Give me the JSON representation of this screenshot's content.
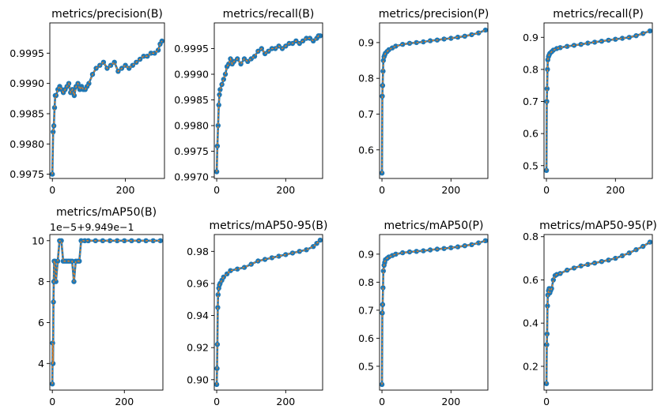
{
  "chart_data": [
    {
      "type": "line",
      "title": "metrics/precision(B)",
      "xlabel": "",
      "ylabel": "",
      "xlim": [
        -7,
        307
      ],
      "ylim": [
        0.99743,
        1.0
      ],
      "xticks": [
        0,
        200
      ],
      "yticks": [
        0.9975,
        0.998,
        0.9985,
        0.999,
        0.9995
      ],
      "ytick_labels": [
        "0.9975",
        "0.9980",
        "0.9985",
        "0.9990",
        "0.9995"
      ],
      "series": [
        {
          "x": [
            0,
            2,
            4,
            6,
            8,
            10,
            15,
            20,
            25,
            30,
            35,
            40,
            45,
            50,
            55,
            60,
            65,
            70,
            75,
            80,
            85,
            90,
            95,
            100,
            110,
            120,
            130,
            140,
            150,
            160,
            170,
            180,
            190,
            200,
            210,
            220,
            230,
            240,
            250,
            260,
            270,
            280,
            290,
            295,
            300
          ],
          "values": [
            0.9975,
            0.9982,
            0.9983,
            0.9986,
            0.9988,
            0.9988,
            0.9989,
            0.99895,
            0.9989,
            0.99885,
            0.9989,
            0.99895,
            0.999,
            0.99885,
            0.9989,
            0.9988,
            0.99895,
            0.999,
            0.9989,
            0.99895,
            0.9989,
            0.9989,
            0.99895,
            0.999,
            0.99915,
            0.99925,
            0.9993,
            0.99935,
            0.99925,
            0.9993,
            0.99935,
            0.9992,
            0.99925,
            0.9993,
            0.99925,
            0.9993,
            0.99935,
            0.9994,
            0.99945,
            0.99945,
            0.9995,
            0.9995,
            0.99955,
            0.99965,
            0.9997
          ]
        }
      ]
    },
    {
      "type": "line",
      "title": "metrics/recall(B)",
      "xlabel": "",
      "ylabel": "",
      "xlim": [
        -7,
        307
      ],
      "ylim": [
        0.99697,
        1.0
      ],
      "xticks": [
        0,
        200
      ],
      "yticks": [
        0.997,
        0.9975,
        0.998,
        0.9985,
        0.999,
        0.9995
      ],
      "ytick_labels": [
        "0.9970",
        "0.9975",
        "0.9980",
        "0.9985",
        "0.9990",
        "0.9995"
      ],
      "series": [
        {
          "x": [
            0,
            2,
            4,
            6,
            8,
            10,
            15,
            20,
            25,
            30,
            35,
            40,
            45,
            50,
            60,
            70,
            80,
            90,
            100,
            110,
            120,
            130,
            140,
            150,
            160,
            170,
            180,
            190,
            200,
            210,
            220,
            230,
            240,
            250,
            260,
            270,
            280,
            290,
            295,
            300
          ],
          "values": [
            0.9971,
            0.9976,
            0.998,
            0.9984,
            0.9986,
            0.9987,
            0.9988,
            0.9989,
            0.999,
            0.99915,
            0.9992,
            0.9993,
            0.9992,
            0.99925,
            0.9993,
            0.9992,
            0.9993,
            0.99925,
            0.9993,
            0.99935,
            0.99945,
            0.9995,
            0.9994,
            0.99945,
            0.9995,
            0.9995,
            0.99955,
            0.9995,
            0.99955,
            0.9996,
            0.9996,
            0.99965,
            0.9996,
            0.99965,
            0.9997,
            0.9997,
            0.99965,
            0.9997,
            0.99975,
            0.99975
          ]
        }
      ]
    },
    {
      "type": "line",
      "title": "metrics/precision(P)",
      "xlabel": "",
      "ylabel": "",
      "xlim": [
        -7,
        307
      ],
      "ylim": [
        0.52,
        0.955
      ],
      "xticks": [
        0,
        200
      ],
      "yticks": [
        0.6,
        0.7,
        0.8,
        0.9
      ],
      "ytick_labels": [
        "0.6",
        "0.7",
        "0.8",
        "0.9"
      ],
      "series": [
        {
          "x": [
            0,
            1,
            2,
            3,
            4,
            6,
            8,
            10,
            15,
            20,
            30,
            40,
            60,
            80,
            100,
            120,
            140,
            160,
            180,
            200,
            220,
            240,
            260,
            280,
            300
          ],
          "values": [
            0.535,
            0.75,
            0.78,
            0.82,
            0.85,
            0.86,
            0.865,
            0.87,
            0.875,
            0.88,
            0.885,
            0.89,
            0.895,
            0.898,
            0.9,
            0.902,
            0.905,
            0.907,
            0.91,
            0.912,
            0.915,
            0.918,
            0.922,
            0.927,
            0.935
          ]
        }
      ]
    },
    {
      "type": "line",
      "title": "metrics/recall(P)",
      "xlabel": "",
      "ylabel": "",
      "xlim": [
        -7,
        307
      ],
      "ylim": [
        0.46,
        0.945
      ],
      "xticks": [
        0,
        200
      ],
      "yticks": [
        0.5,
        0.6,
        0.7,
        0.8,
        0.9
      ],
      "ytick_labels": [
        "0.5",
        "0.6",
        "0.7",
        "0.8",
        "0.9"
      ],
      "series": [
        {
          "x": [
            0,
            1,
            2,
            3,
            4,
            6,
            8,
            10,
            15,
            20,
            30,
            40,
            60,
            80,
            100,
            120,
            140,
            160,
            180,
            200,
            220,
            240,
            260,
            280,
            300
          ],
          "values": [
            0.485,
            0.7,
            0.74,
            0.8,
            0.83,
            0.84,
            0.845,
            0.85,
            0.855,
            0.86,
            0.865,
            0.868,
            0.872,
            0.875,
            0.878,
            0.882,
            0.885,
            0.888,
            0.891,
            0.894,
            0.897,
            0.9,
            0.905,
            0.912,
            0.92
          ]
        }
      ]
    },
    {
      "type": "line",
      "title": "metrics/mAP50(B)",
      "offset_text": "1e−5+9.949e−1",
      "xlabel": "",
      "ylabel": "",
      "xlim": [
        -7,
        307
      ],
      "ylim": [
        2.7,
        10.3
      ],
      "xticks": [
        0,
        200
      ],
      "yticks": [
        4,
        6,
        8,
        10
      ],
      "ytick_labels": [
        "4",
        "6",
        "8",
        "10"
      ],
      "series": [
        {
          "x": [
            0,
            1,
            2,
            3,
            4,
            5,
            7,
            10,
            15,
            20,
            25,
            30,
            35,
            40,
            45,
            50,
            55,
            60,
            65,
            70,
            75,
            80,
            90,
            100,
            120,
            140,
            160,
            180,
            200,
            220,
            240,
            260,
            280,
            300
          ],
          "values": [
            3,
            5,
            4,
            7,
            8,
            9,
            9,
            8,
            9,
            10,
            10,
            9,
            9,
            9,
            9,
            9,
            9,
            8,
            9,
            9,
            9,
            10,
            10,
            10,
            10,
            10,
            10,
            10,
            10,
            10,
            10,
            10,
            10,
            10
          ]
        }
      ]
    },
    {
      "type": "line",
      "title": "metrics/mAP50-95(B)",
      "xlabel": "",
      "ylabel": "",
      "xlim": [
        -7,
        307
      ],
      "ylim": [
        0.8935,
        0.9905
      ],
      "xticks": [
        0,
        200
      ],
      "yticks": [
        0.9,
        0.92,
        0.94,
        0.96,
        0.98
      ],
      "ytick_labels": [
        "0.90",
        "0.92",
        "0.94",
        "0.96",
        "0.98"
      ],
      "series": [
        {
          "x": [
            0,
            1,
            2,
            3,
            4,
            6,
            8,
            10,
            15,
            20,
            30,
            40,
            60,
            80,
            100,
            120,
            140,
            160,
            180,
            200,
            220,
            240,
            260,
            280,
            290,
            300
          ],
          "values": [
            0.897,
            0.907,
            0.922,
            0.945,
            0.953,
            0.957,
            0.959,
            0.96,
            0.962,
            0.964,
            0.966,
            0.968,
            0.969,
            0.97,
            0.972,
            0.974,
            0.975,
            0.976,
            0.977,
            0.978,
            0.979,
            0.98,
            0.981,
            0.983,
            0.985,
            0.987
          ]
        }
      ]
    },
    {
      "type": "line",
      "title": "metrics/mAP50(P)",
      "xlabel": "",
      "ylabel": "",
      "xlim": [
        -7,
        307
      ],
      "ylim": [
        0.415,
        0.97
      ],
      "xticks": [
        0,
        200
      ],
      "yticks": [
        0.5,
        0.6,
        0.7,
        0.8,
        0.9
      ],
      "ytick_labels": [
        "0.5",
        "0.6",
        "0.7",
        "0.8",
        "0.9"
      ],
      "series": [
        {
          "x": [
            0,
            1,
            2,
            3,
            4,
            6,
            8,
            10,
            15,
            20,
            30,
            40,
            60,
            80,
            100,
            120,
            140,
            160,
            180,
            200,
            220,
            240,
            260,
            280,
            300
          ],
          "values": [
            0.435,
            0.69,
            0.72,
            0.78,
            0.84,
            0.86,
            0.87,
            0.88,
            0.885,
            0.89,
            0.895,
            0.9,
            0.905,
            0.908,
            0.91,
            0.912,
            0.915,
            0.918,
            0.92,
            0.923,
            0.926,
            0.93,
            0.934,
            0.94,
            0.948
          ]
        }
      ]
    },
    {
      "type": "line",
      "title": "metrics/mAP50-95(P)",
      "xlabel": "",
      "ylabel": "",
      "xlim": [
        -7,
        307
      ],
      "ylim": [
        0.09,
        0.81
      ],
      "xticks": [
        0
      ],
      "yticks": [
        0.2,
        0.4,
        0.6,
        0.8
      ],
      "ytick_labels": [
        "0.2",
        "0.4",
        "0.6",
        "0.8"
      ],
      "series": [
        {
          "x": [
            0,
            1,
            2,
            3,
            4,
            6,
            8,
            10,
            12,
            15,
            20,
            25,
            30,
            40,
            60,
            80,
            100,
            120,
            140,
            160,
            180,
            200,
            220,
            240,
            260,
            280,
            300
          ],
          "values": [
            0.12,
            0.3,
            0.35,
            0.48,
            0.53,
            0.55,
            0.56,
            0.54,
            0.55,
            0.56,
            0.6,
            0.62,
            0.625,
            0.63,
            0.645,
            0.655,
            0.665,
            0.672,
            0.678,
            0.685,
            0.692,
            0.7,
            0.712,
            0.725,
            0.74,
            0.755,
            0.775
          ]
        }
      ]
    }
  ]
}
